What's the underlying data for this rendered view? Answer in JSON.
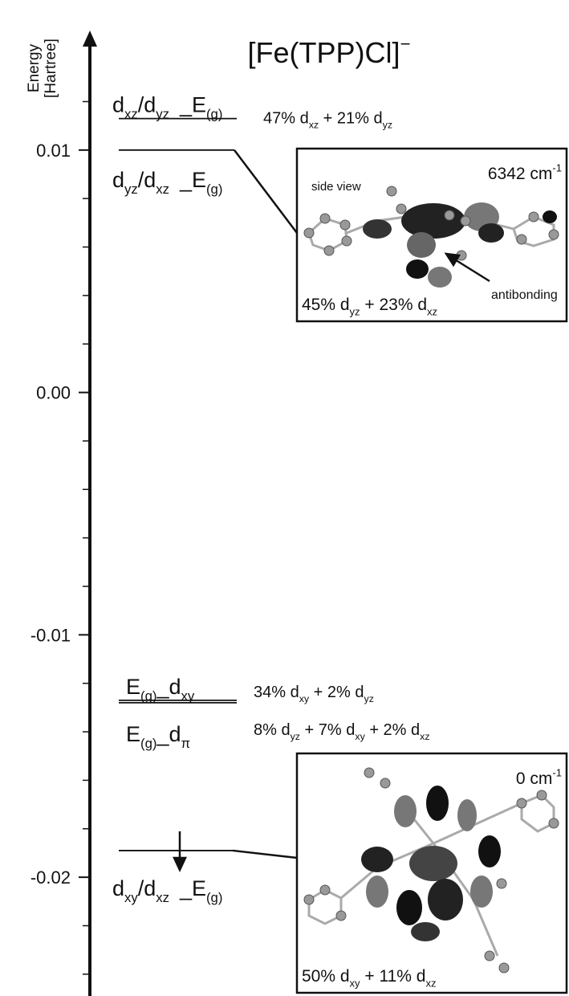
{
  "chart_data": {
    "type": "energy-levels",
    "title": [
      "[Fe(TPP)Cl]",
      "−"
    ],
    "y_label": [
      "Energy",
      "[Hartree]"
    ],
    "ylim": [
      -0.0249,
      0.0147
    ],
    "yticks": [
      0.01,
      {
        "value": 0,
        "label": "0.00"
      },
      -0.01,
      -0.02
    ],
    "minor_yticks": [
      0.012,
      0.008,
      0.006,
      0.004,
      0.002,
      -0.002,
      -0.004,
      -0.006,
      -0.008,
      -0.012,
      -0.014,
      -0.016,
      -0.018,
      -0.022,
      -0.024
    ],
    "levels": [
      {
        "energy": 0.0113,
        "label": [
          "d",
          "xz",
          "/d",
          "yz",
          "  _E",
          "(g)"
        ],
        "composition": [
          "47% d",
          "xz",
          " + 21% d",
          "yz"
        ]
      },
      {
        "energy": 0.01,
        "label": [
          "d",
          "yz",
          "/d",
          "xz",
          "  _E",
          "(g)"
        ]
      },
      {
        "energy": -0.0127,
        "label": [
          "E",
          "(g)",
          "_d",
          "xy"
        ],
        "composition": [
          "34% d",
          "xy",
          " + 2% d",
          "yz"
        ]
      },
      {
        "energy": -0.0128,
        "label": [
          "E",
          "(g)",
          "_d",
          "π"
        ],
        "composition": [
          "8% d",
          "yz",
          " + 7% d",
          "xy",
          " + 2% d",
          "xz"
        ]
      },
      {
        "energy": -0.0189,
        "label": [
          "d",
          "xy",
          "/d",
          "xz",
          "  _E",
          "(g)"
        ]
      }
    ],
    "insets": [
      {
        "level": 1,
        "energy_text": [
          "6342 cm",
          "-1"
        ],
        "view": "side view",
        "composition": [
          "45% d",
          "yz",
          " + 23% d",
          "xz"
        ],
        "note": "antibonding"
      },
      {
        "level": 4,
        "energy_text": [
          "0 cm",
          "-1"
        ],
        "composition": [
          "50% d",
          "xy",
          " + 11% d",
          "xz"
        ]
      }
    ]
  }
}
